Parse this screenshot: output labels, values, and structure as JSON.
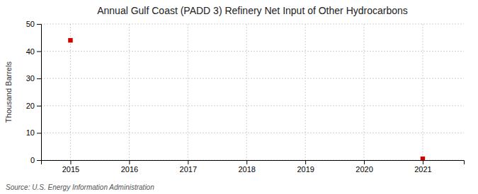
{
  "chart_data": {
    "type": "scatter",
    "title": "Annual Gulf Coast (PADD 3) Refinery Net Input of Other Hydrocarbons",
    "ylabel": "Thousand Barrels",
    "source": "Source: U.S. Energy Information Administration",
    "x": [
      2015,
      2021
    ],
    "values": [
      44,
      0.5
    ],
    "color": "#cc0000",
    "marker": "square",
    "xlim": [
      2014.5,
      2021.7
    ],
    "ylim": [
      0,
      50
    ],
    "xticks": [
      2015,
      2016,
      2017,
      2018,
      2019,
      2020,
      2021
    ],
    "yticks": [
      0,
      10,
      20,
      30,
      40,
      50
    ],
    "grid": true
  }
}
